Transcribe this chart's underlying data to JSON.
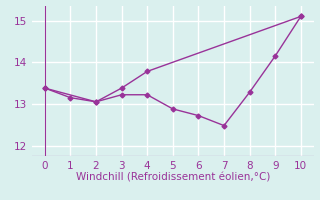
{
  "line1_x": [
    0,
    1,
    2,
    3,
    4,
    10
  ],
  "line1_y": [
    13.38,
    13.15,
    13.05,
    13.38,
    13.78,
    15.1
  ],
  "line2_x": [
    0,
    2,
    3,
    4,
    5,
    6,
    7,
    8,
    9,
    10
  ],
  "line2_y": [
    13.38,
    13.05,
    13.22,
    13.22,
    12.88,
    12.72,
    12.48,
    13.28,
    14.15,
    15.1
  ],
  "color": "#993399",
  "bg_color": "#daf0ee",
  "grid_color": "#ffffff",
  "xlabel": "Windchill (Refroidissement éolien,°C)",
  "xlim": [
    -0.5,
    10.5
  ],
  "ylim": [
    11.75,
    15.35
  ],
  "yticks": [
    12,
    13,
    14,
    15
  ],
  "xticks": [
    0,
    1,
    2,
    3,
    4,
    5,
    6,
    7,
    8,
    9,
    10
  ],
  "marker": "D",
  "markersize": 2.5,
  "linewidth": 1.0,
  "xlabel_fontsize": 7.5,
  "tick_fontsize": 7.5,
  "label_color": "#993399"
}
